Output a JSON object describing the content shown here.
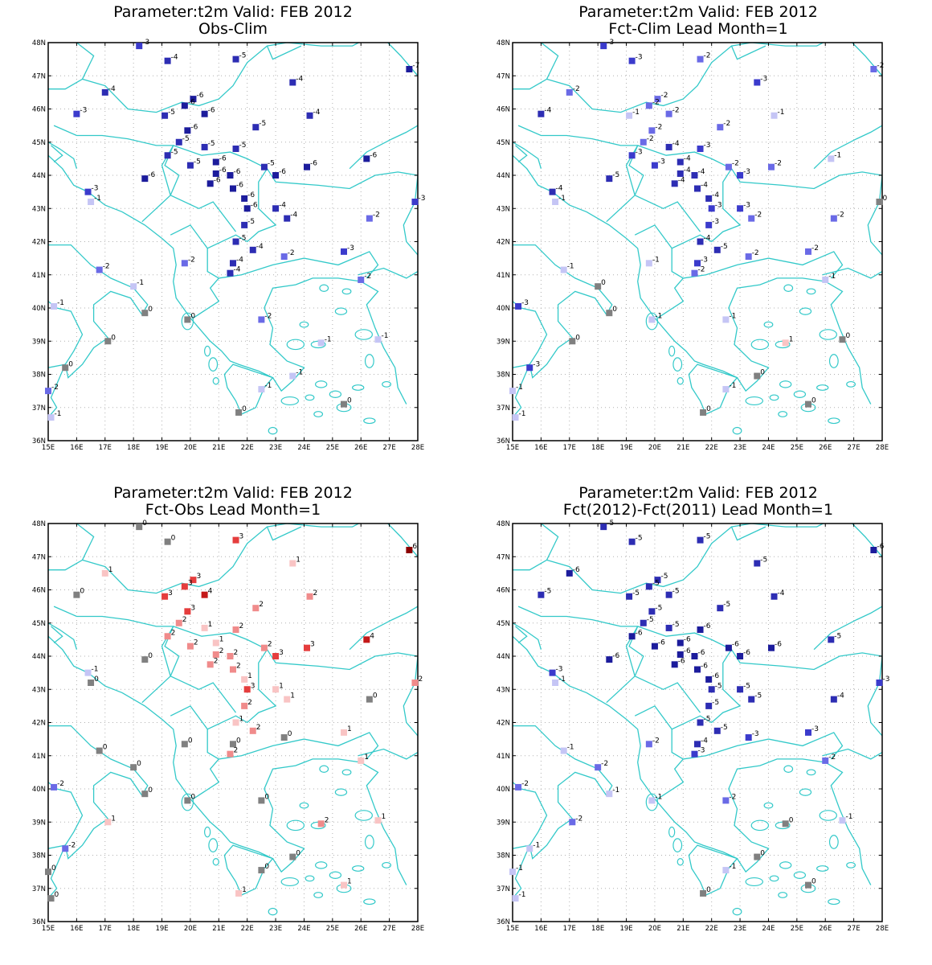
{
  "colors": {
    "coast": "#33c9c9",
    "grid": "#b0b0b0",
    "zero": "#808080",
    "blues": [
      "#1c1c9c",
      "#2d2db3",
      "#3b3bcc",
      "#6a6ae6",
      "#9898ee",
      "#c5c5f5"
    ],
    "reds": [
      "#f9c4c4",
      "#f08b8b",
      "#e53d3d",
      "#c41818",
      "#8b0000"
    ]
  },
  "axes": {
    "lon_labels": [
      "15E",
      "16E",
      "17E",
      "18E",
      "19E",
      "20E",
      "21E",
      "22E",
      "23E",
      "24E",
      "25E",
      "26E",
      "27E",
      "28E"
    ],
    "lat_labels": [
      "36N",
      "37N",
      "38N",
      "39N",
      "40N",
      "41N",
      "42N",
      "43N",
      "44N",
      "45N",
      "46N",
      "47N",
      "48N"
    ],
    "lon_range": [
      15,
      28
    ],
    "lat_range": [
      36,
      48
    ],
    "grid": "dotted"
  },
  "panels": [
    {
      "title1": "Parameter:t2m Valid: FEB 2012",
      "title2": "Obs-Clim"
    },
    {
      "title1": "Parameter:t2m Valid: FEB 2012",
      "title2": "Fct-Clim Lead Month=1"
    },
    {
      "title1": "Parameter:t2m Valid: FEB 2012",
      "title2": "Fct-Obs Lead Month=1"
    },
    {
      "title1": "Parameter:t2m Valid: FEB 2012",
      "title2": "Fct(2012)-Fct(2011) Lead Month=1"
    }
  ],
  "stations": [
    [
      18.2,
      47.9,
      "-3",
      "-3",
      "0",
      "-5"
    ],
    [
      19.2,
      47.45,
      "-4",
      "-3",
      "0",
      "-5"
    ],
    [
      21.6,
      47.5,
      "-5",
      "-2",
      "3",
      "-5"
    ],
    [
      23.6,
      46.8,
      "-4",
      "-3",
      "1",
      "-5"
    ],
    [
      27.7,
      47.2,
      "-7",
      "-2",
      "6",
      "-6"
    ],
    [
      17.0,
      46.5,
      "-4",
      "-2",
      "1",
      "-6"
    ],
    [
      16.0,
      45.85,
      "-3",
      "-4",
      "0",
      "-5"
    ],
    [
      20.1,
      46.3,
      "-6",
      "-2",
      "3",
      "-5"
    ],
    [
      19.8,
      46.1,
      "-6",
      "-2",
      "3",
      "-5"
    ],
    [
      19.1,
      45.8,
      "-5",
      "-1",
      "3",
      "-5"
    ],
    [
      20.5,
      45.85,
      "-6",
      "-2",
      "4",
      "-5"
    ],
    [
      24.2,
      45.8,
      "-4",
      "-1",
      "2",
      "-4"
    ],
    [
      19.9,
      45.35,
      "-6",
      "-2",
      "3",
      "-5"
    ],
    [
      22.3,
      45.45,
      "-5",
      "-2",
      "2",
      "-5"
    ],
    [
      19.6,
      45.0,
      "-5",
      "-2",
      "2",
      "-5"
    ],
    [
      20.5,
      44.85,
      "-5",
      "-4",
      "1",
      "-5"
    ],
    [
      21.6,
      44.8,
      "-5",
      "-3",
      "2",
      "-6"
    ],
    [
      26.2,
      44.5,
      "-6",
      "-1",
      "4",
      "-5"
    ],
    [
      19.2,
      44.6,
      "-5",
      "-3",
      "2",
      "-6"
    ],
    [
      20.0,
      44.3,
      "-5",
      "-3",
      "2",
      "-6"
    ],
    [
      20.9,
      44.4,
      "-6",
      "-4",
      "1",
      "-6"
    ],
    [
      21.4,
      44.0,
      "-6",
      "-4",
      "2",
      "-6"
    ],
    [
      20.9,
      44.05,
      "-6",
      "-4",
      "2",
      "-6"
    ],
    [
      22.6,
      44.25,
      "-5",
      "-2",
      "2",
      "-6"
    ],
    [
      23.0,
      44.0,
      "-6",
      "-3",
      "3",
      "-6"
    ],
    [
      24.1,
      44.25,
      "-6",
      "-2",
      "3",
      "-6"
    ],
    [
      18.4,
      43.9,
      "-6",
      "-5",
      "0",
      "-6"
    ],
    [
      20.7,
      43.75,
      "-6",
      "-4",
      "2",
      "-6"
    ],
    [
      21.5,
      43.6,
      "-6",
      "-4",
      "2",
      "-6"
    ],
    [
      16.4,
      43.5,
      "-3",
      "-4",
      "-1",
      "-3"
    ],
    [
      21.9,
      43.3,
      "-6",
      "-4",
      "1",
      "-6"
    ],
    [
      16.5,
      43.2,
      "-1",
      "-1",
      "0",
      "-1"
    ],
    [
      22.0,
      43.0,
      "-6",
      "-3",
      "3",
      "-5"
    ],
    [
      23.0,
      43.0,
      "-4",
      "-3",
      "1",
      "-5"
    ],
    [
      27.9,
      43.2,
      "-3",
      "0",
      "2",
      "-3"
    ],
    [
      23.4,
      42.7,
      "-4",
      "-2",
      "1",
      "-5"
    ],
    [
      26.3,
      42.7,
      "-2",
      "-2",
      "0",
      "-4"
    ],
    [
      21.9,
      42.5,
      "-5",
      "-3",
      "2",
      "-5"
    ],
    [
      21.6,
      42.0,
      "-5",
      "-4",
      "1",
      "-5"
    ],
    [
      22.2,
      41.75,
      "-4",
      "-5",
      "2",
      "-5"
    ],
    [
      25.4,
      41.7,
      "-3",
      "-2",
      "1",
      "-3"
    ],
    [
      23.3,
      41.55,
      "-2",
      "-2",
      "0",
      "-3"
    ],
    [
      19.8,
      41.35,
      "-2",
      "-1",
      "0",
      "-2"
    ],
    [
      21.5,
      41.35,
      "-4",
      "-3",
      "0",
      "-4"
    ],
    [
      21.4,
      41.05,
      "-4",
      "-2",
      "2",
      "-3"
    ],
    [
      16.8,
      41.15,
      "-2",
      "-1",
      "0",
      "-1"
    ],
    [
      26.0,
      40.85,
      "-2",
      "-1",
      "1",
      "-2"
    ],
    [
      18.0,
      40.65,
      "-1",
      "0",
      "0",
      "-2"
    ],
    [
      15.2,
      40.05,
      "-1",
      "-3",
      "-2",
      "-2"
    ],
    [
      18.4,
      39.85,
      "0",
      "0",
      "0",
      "-1"
    ],
    [
      19.9,
      39.65,
      "0",
      "-1",
      "0",
      "-1"
    ],
    [
      22.5,
      39.65,
      "-2",
      "-1",
      "0",
      "-2"
    ],
    [
      17.1,
      39.0,
      "0",
      "0",
      "1",
      "-2"
    ],
    [
      24.6,
      38.95,
      "-1",
      "1",
      "2",
      "0"
    ],
    [
      26.6,
      39.05,
      "-1",
      "0",
      "1",
      "-1"
    ],
    [
      15.6,
      38.2,
      "0",
      "-3",
      "-2",
      "-1"
    ],
    [
      23.6,
      37.95,
      "-1",
      "0",
      "0",
      "0"
    ],
    [
      15.0,
      37.5,
      "-2",
      "-1",
      "0",
      "-1"
    ],
    [
      22.5,
      37.55,
      "-1",
      "-1",
      "0",
      "-1"
    ],
    [
      25.4,
      37.1,
      "0",
      "0",
      "1",
      "0"
    ],
    [
      15.1,
      36.7,
      "-1",
      "-1",
      "0",
      "-1"
    ],
    [
      21.7,
      36.85,
      "0",
      "0",
      "1",
      "0"
    ]
  ]
}
